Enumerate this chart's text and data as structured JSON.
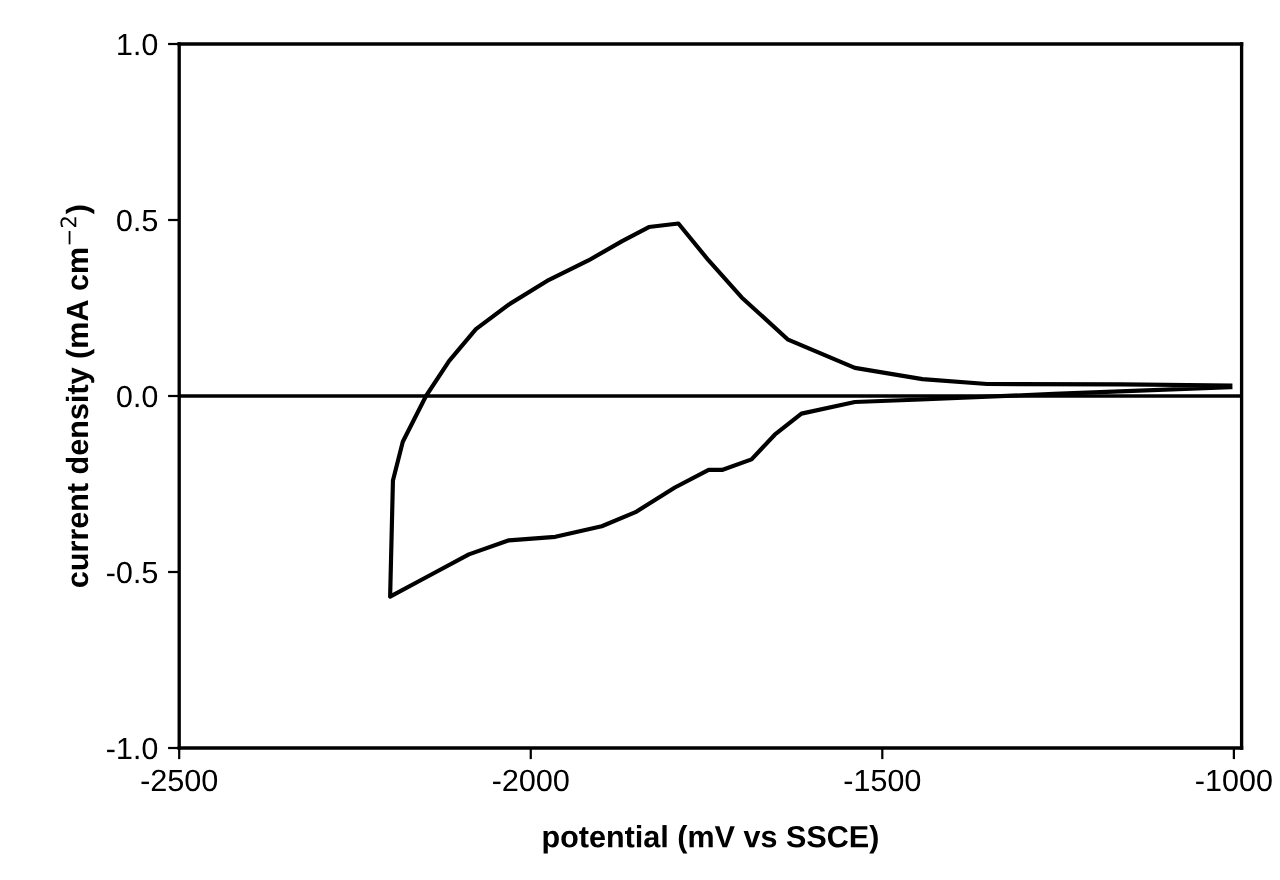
{
  "chart_data": {
    "type": "line",
    "xlabel": "potential (mV vs SSCE)",
    "ylabel": "current density (mA cm$^{−2}$)",
    "xlim": [
      -2500,
      -989
    ],
    "ylim": [
      -1.0,
      1.0
    ],
    "xticks": [
      -2500,
      -2000,
      -1500,
      -1000
    ],
    "yticks": [
      {
        "value": -1.0,
        "label": "-1.0"
      },
      {
        "value": -0.5,
        "label": "-0.5"
      },
      {
        "value": 0.0,
        "label": "0.0"
      },
      {
        "value": 0.5,
        "label": "0.5"
      },
      {
        "value": 1.0,
        "label": "1.0"
      }
    ],
    "grid": false,
    "legend": false,
    "marker": "none",
    "line_style": "solid",
    "ref_lines": [
      {
        "axis": "y",
        "value": 0,
        "color": "#000000"
      }
    ],
    "series": [
      {
        "color": "#000000",
        "x": [
          -1005,
          -1256,
          -1445,
          -1539,
          -1615,
          -1653,
          -1686,
          -1728,
          -1747,
          -1795,
          -1851,
          -1899,
          -1965,
          -2031,
          -2088,
          -2144,
          -2200,
          -2196,
          -2182,
          -2149,
          -2116,
          -2078,
          -2031,
          -1974,
          -1918,
          -1870,
          -1832,
          -1790,
          -1747,
          -1700,
          -1634,
          -1539,
          -1443,
          -1351,
          -1161,
          -1005
        ],
        "values": [
          0.025,
          0.006,
          -0.01,
          -0.017,
          -0.05,
          -0.11,
          -0.18,
          -0.21,
          -0.21,
          -0.26,
          -0.33,
          -0.37,
          -0.4,
          -0.41,
          -0.45,
          -0.51,
          -0.57,
          -0.24,
          -0.13,
          0.0,
          0.1,
          0.19,
          0.26,
          0.33,
          0.385,
          0.44,
          0.48,
          0.49,
          0.385,
          0.28,
          0.16,
          0.08,
          0.048,
          0.034,
          0.033,
          0.03
        ]
      }
    ]
  }
}
